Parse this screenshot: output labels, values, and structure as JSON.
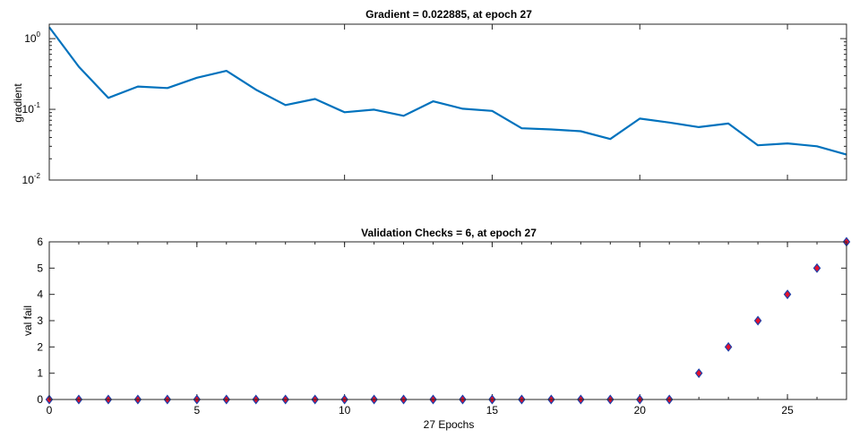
{
  "chart_data": [
    {
      "type": "line",
      "title": "Gradient = 0.022885, at epoch 27",
      "xlabel": "",
      "ylabel": "gradient",
      "yscale": "log",
      "xlim": [
        0,
        27
      ],
      "ylim": [
        0.01,
        1.6
      ],
      "yticks": [
        {
          "value": 1,
          "base": "10",
          "exp": "0"
        },
        {
          "value": 0.1,
          "base": "10",
          "exp": "-1"
        },
        {
          "value": 0.01,
          "base": "10",
          "exp": "-2"
        }
      ],
      "color": "#0072bd",
      "x": [
        0,
        1,
        2,
        3,
        4,
        5,
        6,
        7,
        8,
        9,
        10,
        11,
        12,
        13,
        14,
        15,
        16,
        17,
        18,
        19,
        20,
        21,
        22,
        23,
        24,
        25,
        26,
        27
      ],
      "y": [
        1.45,
        0.4,
        0.145,
        0.21,
        0.2,
        0.28,
        0.35,
        0.19,
        0.115,
        0.14,
        0.091,
        0.099,
        0.081,
        0.13,
        0.102,
        0.095,
        0.054,
        0.052,
        0.049,
        0.038,
        0.074,
        0.065,
        0.056,
        0.063,
        0.031,
        0.033,
        0.03,
        0.022885
      ]
    },
    {
      "type": "scatter",
      "title": "Validation Checks = 6, at epoch 27",
      "xlabel": "27 Epochs",
      "ylabel": "val fail",
      "xlim": [
        0,
        27
      ],
      "ylim": [
        0,
        6
      ],
      "xticks": [
        "0",
        "5",
        "10",
        "15",
        "20",
        "25"
      ],
      "yticks": [
        "0",
        "1",
        "2",
        "3",
        "4",
        "5",
        "6"
      ],
      "marker": "diamond",
      "marker_face": "#e8102a",
      "marker_edge": "#1f3fa8",
      "x": [
        0,
        1,
        2,
        3,
        4,
        5,
        6,
        7,
        8,
        9,
        10,
        11,
        12,
        13,
        14,
        15,
        16,
        17,
        18,
        19,
        20,
        21,
        22,
        23,
        24,
        25,
        26,
        27
      ],
      "y": [
        0,
        0,
        0,
        0,
        0,
        0,
        0,
        0,
        0,
        0,
        0,
        0,
        0,
        0,
        0,
        0,
        0,
        0,
        0,
        0,
        0,
        0,
        1,
        2,
        3,
        4,
        5,
        6
      ]
    }
  ]
}
